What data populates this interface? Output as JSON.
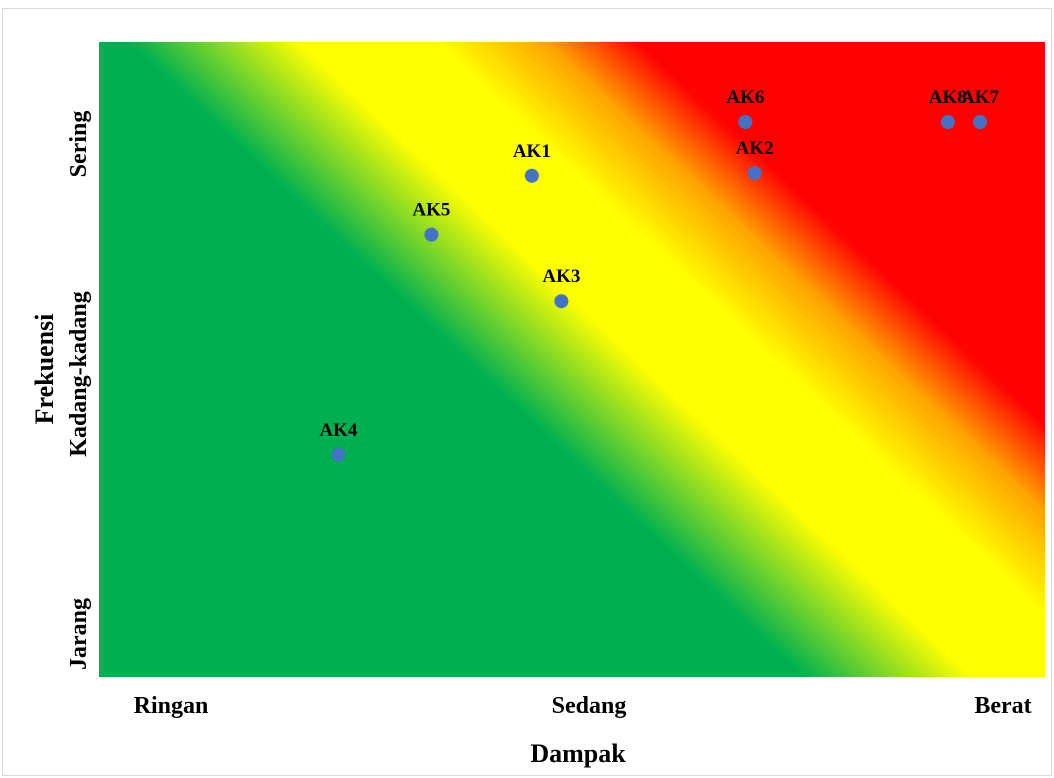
{
  "chart_data": {
    "type": "scatter",
    "title": "",
    "xlabel": "Dampak",
    "ylabel": "Frekuensi",
    "x_tick_labels": [
      "Ringan",
      "Sedang",
      "Berat"
    ],
    "y_tick_labels": [
      "Jarang",
      "Kadang-kadang",
      "Sering"
    ],
    "xlim": [
      1,
      3
    ],
    "ylim": [
      1,
      3
    ],
    "grid": false,
    "legend": "none",
    "background": "diagonal risk gradient: green (low) to yellow to red (high)",
    "colors": {
      "green": "#00b050",
      "yellow": "#ffff00",
      "orange": "#ffa500",
      "red": "#ff0000",
      "point": "#4472c4"
    },
    "points": [
      {
        "label": "AK1",
        "x": 1.97,
        "y": 2.79
      },
      {
        "label": "AK2",
        "x": 2.46,
        "y": 2.8
      },
      {
        "label": "AK3",
        "x": 2.04,
        "y": 2.3
      },
      {
        "label": "AK4",
        "x": 1.45,
        "y": 1.7
      },
      {
        "label": "AK5",
        "x": 1.7,
        "y": 2.56
      },
      {
        "label": "AK6",
        "x": 2.44,
        "y": 3.0
      },
      {
        "label": "AK8",
        "x": 2.88,
        "y": 3.0
      },
      {
        "label": "AK7",
        "x": 2.95,
        "y": 3.0
      }
    ]
  }
}
